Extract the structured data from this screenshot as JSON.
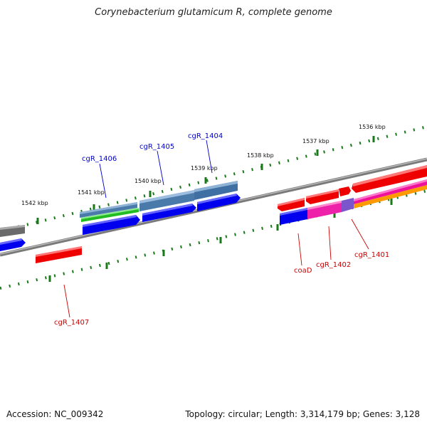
{
  "title": "Corynebacterium glutamicum R, complete genome",
  "footer": {
    "accession": "Accession: NC_009342",
    "summary": "Topology: circular; Length: 3,314,179 bp; Genes: 3,128"
  },
  "scale_labels": [
    "1536 kbp",
    "1537 kbp",
    "1538 kbp",
    "1539 kbp",
    "1540 kbp",
    "1541 kbp",
    "1542 kbp"
  ],
  "gene_labels": {
    "cgR_1404": "cgR_1404",
    "cgR_1405": "cgR_1405",
    "cgR_1406": "cgR_1406",
    "cgR_1407": "cgR_1407",
    "coaD": "coaD",
    "cgR_1402": "cgR_1402",
    "cgR_1401": "cgR_1401"
  },
  "colors": {
    "plus_strand_label": "#0000cc",
    "minus_strand_label": "#cc0000",
    "tick": "#1a7a1a",
    "backbone": "#808080"
  }
}
